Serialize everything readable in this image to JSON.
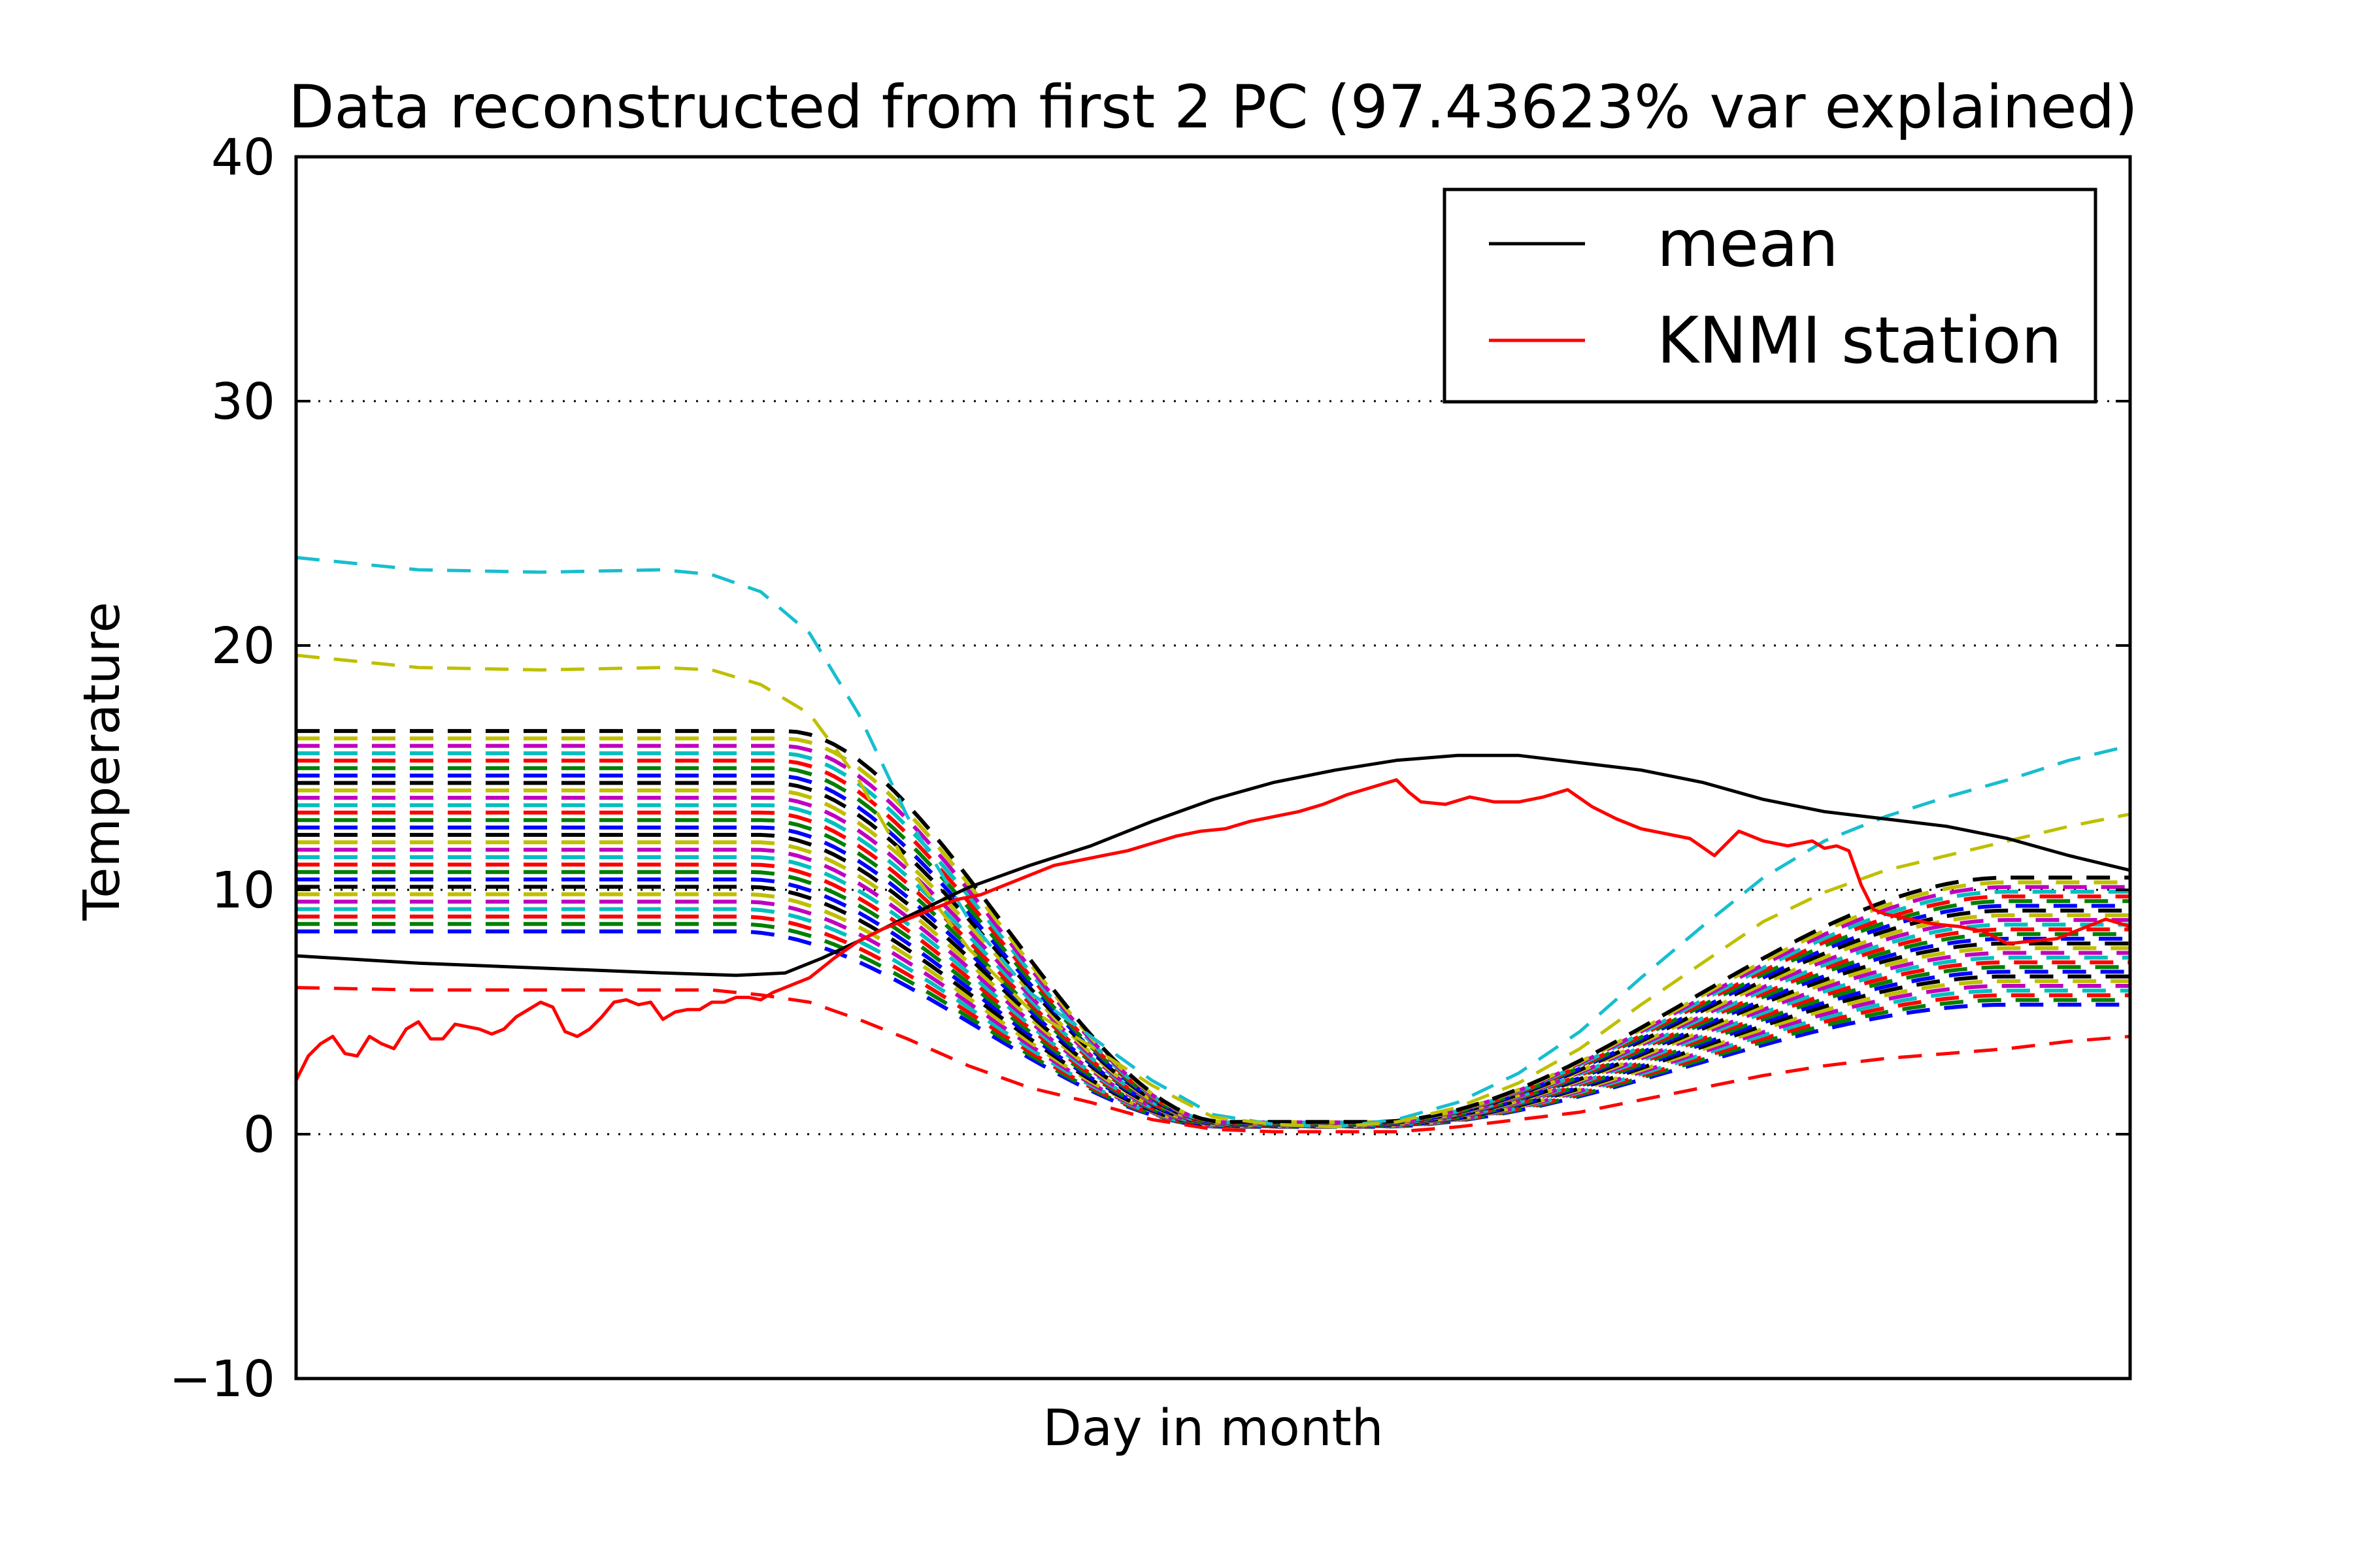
{
  "chart_data": {
    "type": "line",
    "title": "Data reconstructed from first 2 PC (97.43623% var explained)",
    "xlabel": "Day in month",
    "ylabel": "Temperature",
    "xlim": [
      0,
      150
    ],
    "ylim": [
      -10,
      40
    ],
    "yticks": [
      -10,
      0,
      10,
      20,
      30,
      40
    ],
    "ytick_labels": [
      "−10",
      "0",
      "10",
      "20",
      "30",
      "40"
    ],
    "xticks_shown": false,
    "grid": "horizontal dotted",
    "legend": {
      "placement": "top-right",
      "entries": [
        {
          "label": "mean",
          "color": "#000000"
        },
        {
          "label": "KNMI station",
          "color": "#ff0000"
        }
      ]
    },
    "series": [
      {
        "name": "mean",
        "style": "solid",
        "color": "#000000",
        "x": [
          0,
          10,
          20,
          30,
          36,
          40,
          43,
          46,
          50,
          55,
          60,
          65,
          70,
          75,
          80,
          85,
          90,
          95,
          100,
          105,
          110,
          115,
          120,
          125,
          130,
          135,
          140,
          145,
          150
        ],
        "y": [
          7.3,
          7.0,
          6.8,
          6.6,
          6.5,
          6.6,
          7.2,
          7.9,
          8.9,
          10.1,
          11.0,
          11.8,
          12.8,
          13.7,
          14.4,
          14.9,
          15.3,
          15.5,
          15.5,
          15.2,
          14.9,
          14.4,
          13.7,
          13.2,
          12.9,
          12.6,
          12.1,
          11.4,
          10.8
        ]
      },
      {
        "name": "KNMI station",
        "style": "solid",
        "color": "#ff0000",
        "x": [
          0,
          1,
          2,
          3,
          4,
          5,
          6,
          7,
          8,
          9,
          10,
          11,
          12,
          13,
          14,
          15,
          16,
          17,
          18,
          19,
          20,
          21,
          22,
          23,
          24,
          25,
          26,
          27,
          28,
          29,
          30,
          31,
          32,
          33,
          34,
          35,
          36,
          37,
          38,
          39,
          40,
          42,
          44,
          46,
          48,
          50,
          52,
          54,
          56,
          58,
          60,
          62,
          64,
          66,
          68,
          70,
          72,
          74,
          76,
          78,
          80,
          82,
          84,
          86,
          88,
          90,
          91,
          92,
          94,
          96,
          98,
          100,
          102,
          104,
          106,
          108,
          110,
          112,
          114,
          116,
          118,
          120,
          122,
          124,
          125,
          126,
          127,
          128,
          129,
          130,
          132,
          134,
          136,
          138,
          140,
          142,
          144,
          146,
          148,
          150
        ],
        "y": [
          2.2,
          3.2,
          3.7,
          4.0,
          3.3,
          3.2,
          4.0,
          3.7,
          3.5,
          4.3,
          4.6,
          3.9,
          3.9,
          4.5,
          4.4,
          4.3,
          4.1,
          4.3,
          4.8,
          5.1,
          5.4,
          5.2,
          4.2,
          4.0,
          4.3,
          4.8,
          5.4,
          5.5,
          5.3,
          5.4,
          4.7,
          5.0,
          5.1,
          5.1,
          5.4,
          5.4,
          5.6,
          5.6,
          5.5,
          5.8,
          6.0,
          6.4,
          7.2,
          7.9,
          8.4,
          8.8,
          9.2,
          9.6,
          9.8,
          10.2,
          10.6,
          11.0,
          11.2,
          11.4,
          11.6,
          11.9,
          12.2,
          12.4,
          12.5,
          12.8,
          13.0,
          13.2,
          13.5,
          13.9,
          14.2,
          14.5,
          14.0,
          13.6,
          13.5,
          13.8,
          13.6,
          13.6,
          13.8,
          14.1,
          13.4,
          12.9,
          12.5,
          12.3,
          12.1,
          11.4,
          12.4,
          12.0,
          11.8,
          12.0,
          11.7,
          11.8,
          11.6,
          10.2,
          9.2,
          9.0,
          8.8,
          8.6,
          8.5,
          8.3,
          7.8,
          7.9,
          8.0,
          8.4,
          8.8,
          8.5
        ]
      },
      {
        "name": "",
        "style": "dashed",
        "color": "#17becf",
        "x": [
          0,
          10,
          20,
          30,
          34,
          38,
          42,
          46,
          50,
          55,
          60,
          65,
          70,
          75,
          80,
          85,
          90,
          95,
          100,
          105,
          110,
          115,
          120,
          125,
          130,
          135,
          140,
          145,
          150
        ],
        "y": [
          23.6,
          23.1,
          23.0,
          23.1,
          22.9,
          22.2,
          20.5,
          17.2,
          13.0,
          8.8,
          5.8,
          4.0,
          2.2,
          0.8,
          0.4,
          0.3,
          0.6,
          1.3,
          2.5,
          4.2,
          6.4,
          8.5,
          10.5,
          12.0,
          13.0,
          13.8,
          14.5,
          15.3,
          15.9
        ]
      },
      {
        "name": "",
        "style": "dashed",
        "color": "#bfbf00",
        "x": [
          0,
          10,
          20,
          30,
          34,
          38,
          42,
          46,
          50,
          55,
          60,
          65,
          70,
          75,
          80,
          85,
          90,
          95,
          100,
          105,
          110,
          115,
          120,
          125,
          130,
          135,
          140,
          145,
          150
        ],
        "y": [
          19.6,
          19.1,
          19.0,
          19.1,
          19.0,
          18.4,
          17.2,
          14.5,
          11.0,
          7.6,
          5.1,
          3.6,
          2.0,
          0.7,
          0.4,
          0.3,
          0.5,
          1.1,
          2.1,
          3.5,
          5.3,
          7.0,
          8.7,
          9.9,
          10.8,
          11.4,
          12.0,
          12.6,
          13.1
        ]
      },
      {
        "name": "",
        "style": "dashed",
        "color": "#ff0000",
        "x": [
          0,
          10,
          20,
          30,
          34,
          38,
          42,
          46,
          50,
          55,
          60,
          65,
          70,
          75,
          80,
          85,
          90,
          95,
          100,
          105,
          110,
          115,
          120,
          125,
          130,
          135,
          140,
          145,
          150
        ],
        "y": [
          6.0,
          5.9,
          5.9,
          5.9,
          5.9,
          5.7,
          5.4,
          4.7,
          3.9,
          2.8,
          1.9,
          1.3,
          0.6,
          0.2,
          0.1,
          0.1,
          0.1,
          0.3,
          0.6,
          0.9,
          1.4,
          1.9,
          2.4,
          2.8,
          3.1,
          3.3,
          3.5,
          3.8,
          4.0
        ]
      }
    ],
    "band_series": {
      "style": "dashed",
      "description_none": "",
      "colors": [
        "#0000ff",
        "#007f00",
        "#ff0000",
        "#00bfbf",
        "#bf00bf",
        "#bfbf00",
        "#000000"
      ],
      "count": 28,
      "y_start_low": 8.3,
      "y_start_high": 17.8,
      "y_end_low": 5.3,
      "y_end_high": 12.0
    }
  }
}
